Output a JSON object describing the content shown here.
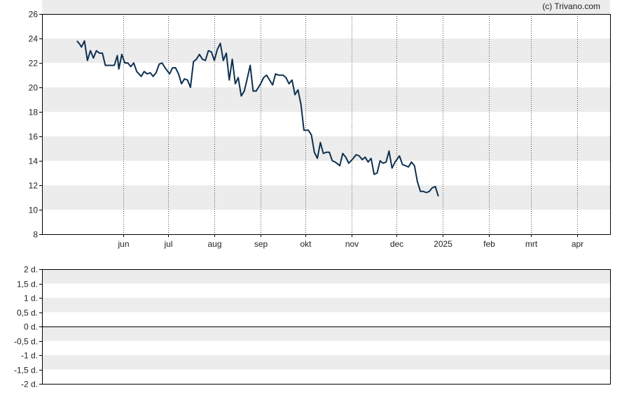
{
  "credit": "(c) Trivano.com",
  "colors": {
    "line": "#0d3050",
    "band": "#ececec",
    "frame": "#000000",
    "grid": "#555555"
  },
  "chart_data": [
    {
      "type": "line",
      "grid": true,
      "ylim": [
        8,
        26
      ],
      "yticks": [
        8,
        10,
        12,
        14,
        16,
        18,
        20,
        22,
        24,
        26
      ],
      "xticks": [
        {
          "label": "jun",
          "x": "2024-06-01"
        },
        {
          "label": "jul",
          "x": "2024-07-01"
        },
        {
          "label": "aug",
          "x": "2024-08-01"
        },
        {
          "label": "sep",
          "x": "2024-09-01"
        },
        {
          "label": "okt",
          "x": "2024-10-01"
        },
        {
          "label": "nov",
          "x": "2024-11-01"
        },
        {
          "label": "dec",
          "x": "2024-12-01"
        },
        {
          "label": "2025",
          "x": "2025-01-01"
        },
        {
          "label": "feb",
          "x": "2025-02-01"
        },
        {
          "label": "mrt",
          "x": "2025-03-01"
        },
        {
          "label": "apr",
          "x": "2025-04-01"
        }
      ],
      "series": [
        {
          "values": [
            [
              "2024-05-01",
              23.8
            ],
            [
              "2024-05-03",
              23.5
            ],
            [
              "2024-05-04",
              23.3
            ],
            [
              "2024-05-06",
              23.8
            ],
            [
              "2024-05-08",
              22.2
            ],
            [
              "2024-05-10",
              23.0
            ],
            [
              "2024-05-12",
              22.4
            ],
            [
              "2024-05-14",
              23.0
            ],
            [
              "2024-05-16",
              22.8
            ],
            [
              "2024-05-18",
              22.8
            ],
            [
              "2024-05-20",
              21.8
            ],
            [
              "2024-05-23",
              21.8
            ],
            [
              "2024-05-26",
              21.8
            ],
            [
              "2024-05-28",
              22.6
            ],
            [
              "2024-05-29",
              21.5
            ],
            [
              "2024-05-31",
              22.7
            ],
            [
              "2024-06-02",
              22.0
            ],
            [
              "2024-06-04",
              22.0
            ],
            [
              "2024-06-06",
              21.7
            ],
            [
              "2024-06-08",
              22.0
            ],
            [
              "2024-06-10",
              21.3
            ],
            [
              "2024-06-13",
              20.9
            ],
            [
              "2024-06-15",
              21.3
            ],
            [
              "2024-06-17",
              21.1
            ],
            [
              "2024-06-19",
              21.2
            ],
            [
              "2024-06-21",
              20.9
            ],
            [
              "2024-06-23",
              21.2
            ],
            [
              "2024-06-25",
              21.9
            ],
            [
              "2024-06-27",
              22.0
            ],
            [
              "2024-06-29",
              21.6
            ],
            [
              "2024-07-02",
              21.1
            ],
            [
              "2024-07-04",
              21.6
            ],
            [
              "2024-07-06",
              21.6
            ],
            [
              "2024-07-08",
              21.1
            ],
            [
              "2024-07-10",
              20.3
            ],
            [
              "2024-07-12",
              20.7
            ],
            [
              "2024-07-14",
              20.6
            ],
            [
              "2024-07-16",
              20.0
            ],
            [
              "2024-07-18",
              22.1
            ],
            [
              "2024-07-20",
              22.3
            ],
            [
              "2024-07-22",
              22.7
            ],
            [
              "2024-07-24",
              22.3
            ],
            [
              "2024-07-26",
              22.2
            ],
            [
              "2024-07-28",
              23.0
            ],
            [
              "2024-07-30",
              22.9
            ],
            [
              "2024-08-01",
              22.2
            ],
            [
              "2024-08-03",
              23.1
            ],
            [
              "2024-08-05",
              23.6
            ],
            [
              "2024-08-07",
              22.2
            ],
            [
              "2024-08-09",
              22.8
            ],
            [
              "2024-08-11",
              20.6
            ],
            [
              "2024-08-13",
              22.3
            ],
            [
              "2024-08-15",
              20.3
            ],
            [
              "2024-08-17",
              20.8
            ],
            [
              "2024-08-19",
              19.3
            ],
            [
              "2024-08-21",
              19.7
            ],
            [
              "2024-08-23",
              20.7
            ],
            [
              "2024-08-25",
              21.8
            ],
            [
              "2024-08-27",
              19.7
            ],
            [
              "2024-08-29",
              19.7
            ],
            [
              "2024-09-01",
              20.3
            ],
            [
              "2024-09-03",
              20.8
            ],
            [
              "2024-09-05",
              21.0
            ],
            [
              "2024-09-07",
              20.6
            ],
            [
              "2024-09-09",
              20.2
            ],
            [
              "2024-09-11",
              21.1
            ],
            [
              "2024-09-13",
              21.0
            ],
            [
              "2024-09-16",
              21.0
            ],
            [
              "2024-09-18",
              20.8
            ],
            [
              "2024-09-20",
              20.3
            ],
            [
              "2024-09-22",
              20.6
            ],
            [
              "2024-09-24",
              19.4
            ],
            [
              "2024-09-26",
              19.8
            ],
            [
              "2024-09-28",
              18.6
            ],
            [
              "2024-09-30",
              16.5
            ],
            [
              "2024-10-03",
              16.5
            ],
            [
              "2024-10-05",
              16.1
            ],
            [
              "2024-10-07",
              14.7
            ],
            [
              "2024-10-09",
              14.2
            ],
            [
              "2024-10-11",
              15.5
            ],
            [
              "2024-10-13",
              14.6
            ],
            [
              "2024-10-15",
              14.7
            ],
            [
              "2024-10-17",
              14.7
            ],
            [
              "2024-10-19",
              14.0
            ],
            [
              "2024-10-21",
              13.9
            ],
            [
              "2024-10-24",
              13.6
            ],
            [
              "2024-10-26",
              14.6
            ],
            [
              "2024-10-28",
              14.3
            ],
            [
              "2024-10-30",
              13.8
            ],
            [
              "2024-11-02",
              14.2
            ],
            [
              "2024-11-04",
              14.5
            ],
            [
              "2024-11-06",
              14.4
            ],
            [
              "2024-11-08",
              14.1
            ],
            [
              "2024-11-10",
              14.3
            ],
            [
              "2024-11-12",
              13.9
            ],
            [
              "2024-11-14",
              14.2
            ],
            [
              "2024-11-16",
              12.9
            ],
            [
              "2024-11-18",
              13.0
            ],
            [
              "2024-11-20",
              14.0
            ],
            [
              "2024-11-22",
              13.8
            ],
            [
              "2024-11-24",
              13.9
            ],
            [
              "2024-11-26",
              14.8
            ],
            [
              "2024-11-28",
              13.4
            ],
            [
              "2024-11-30",
              13.9
            ],
            [
              "2024-12-03",
              14.4
            ],
            [
              "2024-12-05",
              13.7
            ],
            [
              "2024-12-07",
              13.6
            ],
            [
              "2024-12-09",
              13.5
            ],
            [
              "2024-12-11",
              13.9
            ],
            [
              "2024-12-13",
              13.6
            ],
            [
              "2024-12-15",
              12.3
            ],
            [
              "2024-12-17",
              11.5
            ],
            [
              "2024-12-19",
              11.5
            ],
            [
              "2024-12-21",
              11.4
            ],
            [
              "2024-12-23",
              11.5
            ],
            [
              "2024-12-25",
              11.8
            ],
            [
              "2024-12-27",
              11.9
            ],
            [
              "2024-12-29",
              11.1
            ]
          ]
        }
      ]
    },
    {
      "type": "line",
      "grid": true,
      "ylim": [
        -2,
        2
      ],
      "yticks": [
        {
          "value": 2,
          "label": "2 d."
        },
        {
          "value": 1.5,
          "label": "1,5 d."
        },
        {
          "value": 1,
          "label": "1 d."
        },
        {
          "value": 0.5,
          "label": "0,5 d."
        },
        {
          "value": 0,
          "label": "0 d."
        },
        {
          "value": -0.5,
          "label": "-0,5 d."
        },
        {
          "value": -1,
          "label": "-1 d."
        },
        {
          "value": -1.5,
          "label": "-1,5 d."
        },
        {
          "value": -2,
          "label": "-2 d."
        }
      ],
      "series": []
    }
  ]
}
